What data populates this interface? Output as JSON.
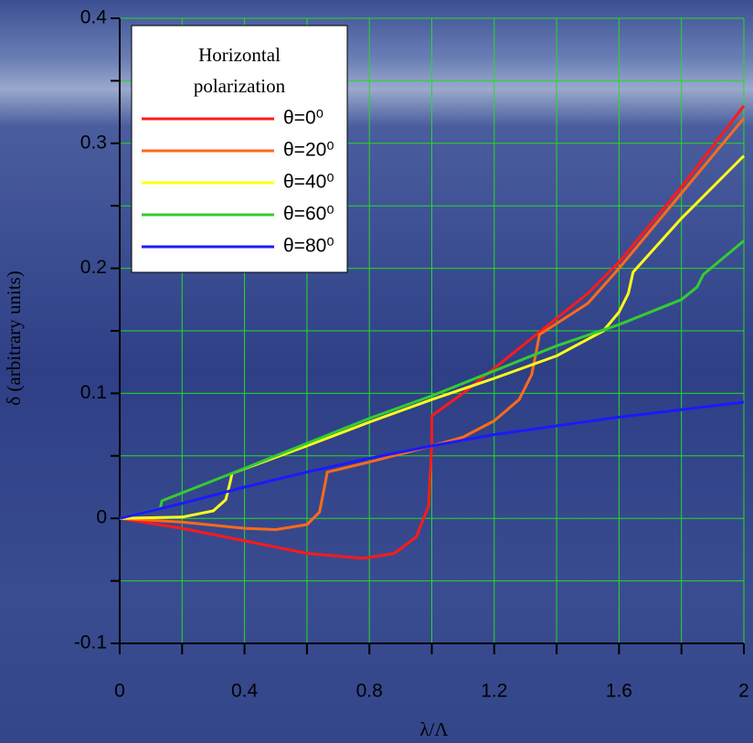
{
  "chart_data": {
    "type": "line",
    "legend_title": [
      "Horizontal",
      "polarization"
    ],
    "xlabel": "λ/Λ",
    "ylabel": "δ (arbitrary units)",
    "xlim": [
      0,
      2
    ],
    "ylim": [
      -0.1,
      0.4
    ],
    "xticks": [
      0,
      0.4,
      0.8,
      1.2,
      1.6,
      2
    ],
    "xminor": [
      0.2,
      0.6,
      1.0,
      1.4,
      1.8
    ],
    "yticks": [
      -0.1,
      0,
      0.1,
      0.2,
      0.3,
      0.4
    ],
    "yminor": [
      -0.05,
      0.05,
      0.15,
      0.25,
      0.35
    ],
    "grid": true,
    "grid_color": "#22dd22",
    "legend": "upper left",
    "series": [
      {
        "name": "θ=0⁰",
        "color": "#ff1a1a",
        "x": [
          0,
          0.2,
          0.4,
          0.6,
          0.78,
          0.88,
          0.95,
          0.99,
          1.0,
          1.0,
          1.1,
          1.2,
          1.35,
          1.5,
          1.6,
          1.8,
          2.0
        ],
        "values": [
          0,
          -0.008,
          -0.018,
          -0.028,
          -0.032,
          -0.028,
          -0.015,
          0.01,
          0.06,
          0.082,
          0.1,
          0.12,
          0.15,
          0.18,
          0.205,
          0.265,
          0.33
        ]
      },
      {
        "name": "θ=20⁰",
        "color": "#ff6a1a",
        "x": [
          0,
          0.2,
          0.4,
          0.5,
          0.6,
          0.64,
          0.66,
          0.665,
          0.8,
          1.0,
          1.1,
          1.2,
          1.28,
          1.32,
          1.34,
          1.345,
          1.5,
          1.6,
          1.8,
          2.0
        ],
        "values": [
          0,
          -0.003,
          -0.008,
          -0.009,
          -0.005,
          0.005,
          0.03,
          0.037,
          0.045,
          0.058,
          0.065,
          0.078,
          0.095,
          0.115,
          0.14,
          0.147,
          0.172,
          0.2,
          0.26,
          0.32
        ]
      },
      {
        "name": "θ=40⁰",
        "color": "#ffff1a",
        "x": [
          0,
          0.2,
          0.3,
          0.34,
          0.355,
          0.36,
          0.6,
          0.8,
          1.0,
          1.2,
          1.4,
          1.55,
          1.6,
          1.63,
          1.645,
          1.8,
          2.0
        ],
        "values": [
          0,
          0.001,
          0.006,
          0.015,
          0.03,
          0.036,
          0.058,
          0.077,
          0.095,
          0.112,
          0.13,
          0.15,
          0.165,
          0.18,
          0.197,
          0.24,
          0.29
        ]
      },
      {
        "name": "θ=60⁰",
        "color": "#33cc33",
        "x": [
          0,
          0.13,
          0.135,
          0.4,
          0.6,
          0.8,
          1.0,
          1.2,
          1.4,
          1.6,
          1.8,
          1.85,
          1.87,
          2.0
        ],
        "values": [
          0,
          0.008,
          0.014,
          0.04,
          0.06,
          0.08,
          0.098,
          0.118,
          0.138,
          0.155,
          0.175,
          0.185,
          0.195,
          0.222
        ]
      },
      {
        "name": "θ=80⁰",
        "color": "#1a1aff",
        "x": [
          0,
          0.2,
          0.4,
          0.6,
          0.8,
          1.0,
          1.2,
          1.4,
          1.6,
          1.8,
          2.0
        ],
        "values": [
          0,
          0.012,
          0.025,
          0.037,
          0.048,
          0.058,
          0.067,
          0.074,
          0.081,
          0.087,
          0.093
        ]
      }
    ]
  }
}
